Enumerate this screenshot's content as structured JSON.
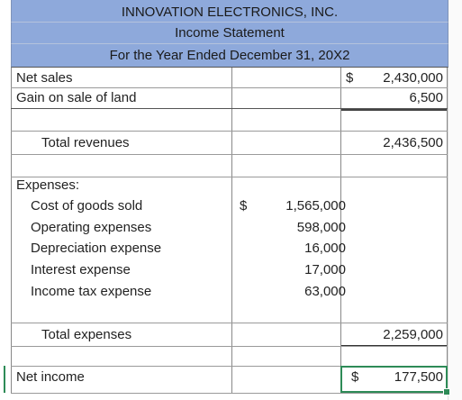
{
  "header": {
    "company": "INNOVATION ELECTRONICS, INC.",
    "statement": "Income Statement",
    "period": "For the Year Ended December 31, 20X2"
  },
  "rows": {
    "net_sales": {
      "label": "Net sales",
      "dollar": "$",
      "value": "2,430,000"
    },
    "gain_land": {
      "label": "Gain on sale of land",
      "value": "6,500"
    },
    "total_revenues": {
      "label": "Total revenues",
      "value": "2,436,500"
    },
    "expenses_heading": {
      "label": "Expenses:"
    },
    "cogs": {
      "label": "Cost of goods sold",
      "dollar": "$",
      "value": "1,565,000"
    },
    "operating": {
      "label": "Operating expenses",
      "value": "598,000"
    },
    "depreciation": {
      "label": "Depreciation expense",
      "value": "16,000"
    },
    "interest": {
      "label": "Interest expense",
      "value": "17,000"
    },
    "income_tax": {
      "label": "Income tax expense",
      "value": "63,000"
    },
    "total_expenses": {
      "label": "Total expenses",
      "value": "2,259,000"
    },
    "net_income": {
      "label": "Net income",
      "dollar": "$",
      "value": "177,500"
    }
  },
  "colors": {
    "header_fill": "#8ea9db",
    "selection": "#2e8b57"
  }
}
